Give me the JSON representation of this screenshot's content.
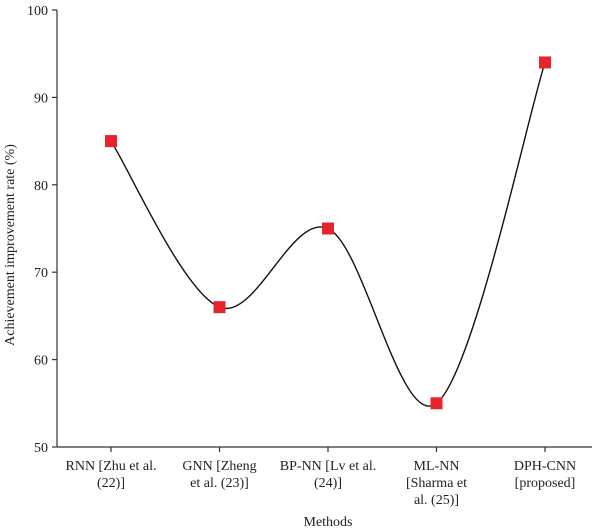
{
  "chart_data": {
    "type": "line",
    "categories": [
      [
        "RNN [Zhu et al.",
        "(22)]"
      ],
      [
        "GNN [Zheng",
        "et al. (23)]"
      ],
      [
        "BP-NN [Lv et al.",
        "(24)]"
      ],
      [
        "ML-NN",
        "[Sharma et",
        "al. (25)]"
      ],
      [
        "DPH-CNN",
        "[proposed]"
      ]
    ],
    "series": [
      {
        "values": [
          85,
          66,
          75,
          55,
          94
        ]
      }
    ],
    "xlabel": "Methods",
    "ylabel": "Achievement improvement rate (%)",
    "ylim": [
      50,
      100
    ],
    "yticks": [
      50,
      60,
      70,
      80,
      90,
      100
    ],
    "grid": false,
    "line_style": "smooth",
    "marker": "square",
    "colors": {
      "marker": "#e8242b",
      "line": "#111111",
      "axis": "#333333"
    }
  }
}
